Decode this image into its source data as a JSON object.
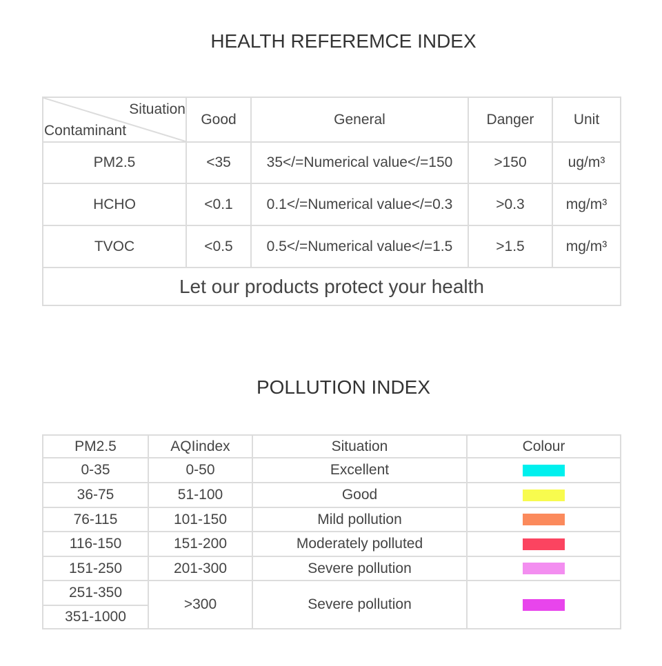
{
  "health": {
    "title": "HEALTH REFEREMCE INDEX",
    "header": {
      "situation": "Situation",
      "contaminant": "Contaminant",
      "columns": [
        "Good",
        "General",
        "Danger",
        "Unit"
      ]
    },
    "rows": [
      [
        "PM2.5",
        "<35",
        "35</=Numerical value</=150",
        ">150",
        "ug/m³"
      ],
      [
        "HCHO",
        "<0.1",
        "0.1</=Numerical value</=0.3",
        ">0.3",
        "mg/m³"
      ],
      [
        "TVOC",
        "<0.5",
        "0.5</=Numerical value</=1.5",
        ">1.5",
        "mg/m³"
      ]
    ],
    "footer": "Let our products protect your health"
  },
  "pollution": {
    "title": "POLLUTION INDEX",
    "columns": [
      "PM2.5",
      "AQIindex",
      "Situation",
      "Colour"
    ],
    "rows": [
      {
        "pm25": [
          "0-35"
        ],
        "aqi": "0-50",
        "situation": "Excellent",
        "color": "#00f0ee"
      },
      {
        "pm25": [
          "36-75"
        ],
        "aqi": "51-100",
        "situation": "Good",
        "color": "#f8fb4e"
      },
      {
        "pm25": [
          "76-115"
        ],
        "aqi": "101-150",
        "situation": "Mild pollution",
        "color": "#fb8a5c"
      },
      {
        "pm25": [
          "116-150"
        ],
        "aqi": "151-200",
        "situation": "Moderately polluted",
        "color": "#fb4460"
      },
      {
        "pm25": [
          "151-250"
        ],
        "aqi": "201-300",
        "situation": "Severe pollution",
        "color": "#f38ef0"
      },
      {
        "pm25": [
          "251-350",
          "351-1000"
        ],
        "aqi": ">300",
        "situation": "Severe pollution",
        "color": "#e845ec"
      }
    ]
  }
}
